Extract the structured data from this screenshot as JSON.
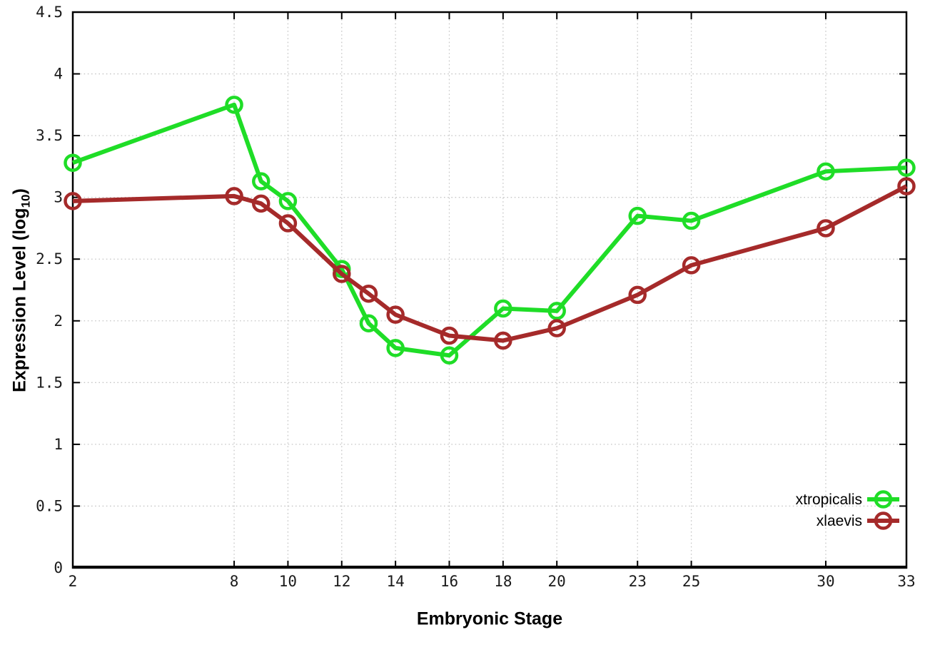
{
  "chart_data": {
    "type": "line",
    "title": "",
    "xlabel": "Embryonic Stage",
    "ylabel": "Expression Level (log10)",
    "ylabel_parts": {
      "prefix": "Expression Level (log",
      "sub": "10",
      "suffix": ")"
    },
    "x": [
      2,
      8,
      9,
      10,
      12,
      13,
      14,
      16,
      18,
      20,
      23,
      25,
      30,
      33
    ],
    "series": [
      {
        "name": "xtropicalis",
        "color": "#1fdd27",
        "values": [
          3.28,
          3.75,
          3.13,
          2.97,
          2.42,
          1.98,
          1.78,
          1.72,
          2.1,
          2.08,
          2.85,
          2.81,
          3.21,
          3.24
        ]
      },
      {
        "name": "xlaevis",
        "color": "#a52a2a",
        "values": [
          2.97,
          3.01,
          2.95,
          2.79,
          2.38,
          2.22,
          2.05,
          1.88,
          1.84,
          1.94,
          2.21,
          2.45,
          2.75,
          3.09
        ]
      }
    ],
    "x_ticks": [
      {
        "v": 2,
        "label": "2"
      },
      {
        "v": 8,
        "label": "8"
      },
      {
        "v": 10,
        "label": "10"
      },
      {
        "v": 12,
        "label": "12"
      },
      {
        "v": 14,
        "label": "14"
      },
      {
        "v": 16,
        "label": "16"
      },
      {
        "v": 18,
        "label": "18"
      },
      {
        "v": 20,
        "label": "20"
      },
      {
        "v": 23,
        "label": "23"
      },
      {
        "v": 25,
        "label": "25"
      },
      {
        "v": 30,
        "label": "30"
      },
      {
        "v": 33,
        "label": "33"
      }
    ],
    "y_ticks": [
      {
        "v": 0,
        "label": "0"
      },
      {
        "v": 0.5,
        "label": "0.5"
      },
      {
        "v": 1,
        "label": "1"
      },
      {
        "v": 1.5,
        "label": "1.5"
      },
      {
        "v": 2,
        "label": "2"
      },
      {
        "v": 2.5,
        "label": "2.5"
      },
      {
        "v": 3,
        "label": "3"
      },
      {
        "v": 3.5,
        "label": "3.5"
      },
      {
        "v": 4,
        "label": "4"
      },
      {
        "v": 4.5,
        "label": "4.5"
      }
    ],
    "xlim": [
      2,
      33
    ],
    "ylim": [
      0,
      4.5
    ],
    "grid": "dotted",
    "legend_position": "inside-bottom-right",
    "colors": {
      "background": "#ffffff",
      "axis": "#000000",
      "grid": "#c6c6c6",
      "tick_text": "#1a1a1a"
    }
  }
}
